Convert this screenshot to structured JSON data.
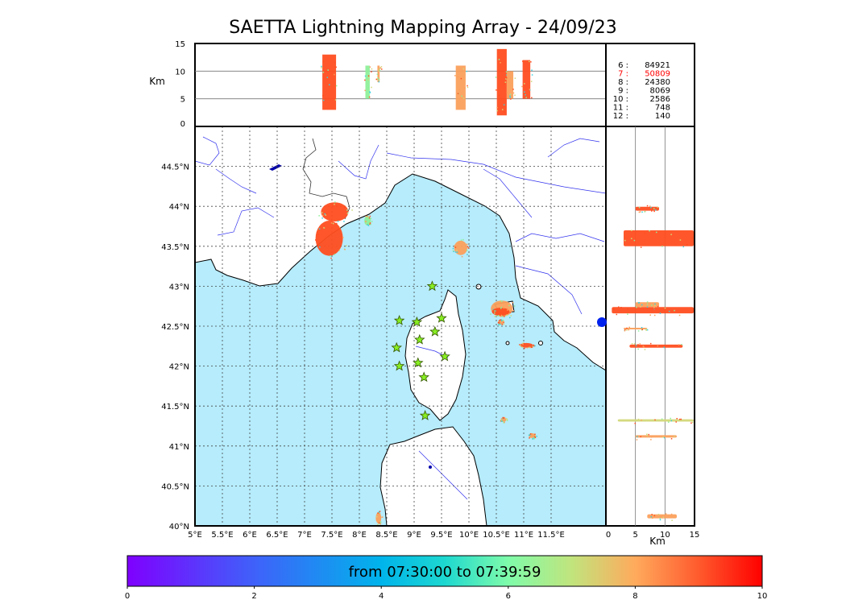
{
  "title": "SAETTA Lightning Mapping Array - 24/09/23",
  "map": {
    "lon_range": [
      5,
      12.5
    ],
    "lat_range": [
      40,
      45
    ],
    "lon_ticks": [
      "5°E",
      "5.5°E",
      "6°E",
      "6.5°E",
      "7°E",
      "7.5°E",
      "8°E",
      "8.5°E",
      "9°E",
      "9.5°E",
      "10°E",
      "10.5°E",
      "11°E",
      "11.5°E"
    ],
    "lat_ticks": [
      "40°N",
      "40.5°N",
      "41°N",
      "41.5°N",
      "42°N",
      "42.5°N",
      "43°N",
      "43.5°N",
      "44°N",
      "44.5°N"
    ],
    "sea_color": "#b6ecfc",
    "stations": [
      [
        9.33,
        43.0
      ],
      [
        8.73,
        42.57
      ],
      [
        9.05,
        42.55
      ],
      [
        9.5,
        42.6
      ],
      [
        9.38,
        42.43
      ],
      [
        9.1,
        42.33
      ],
      [
        8.68,
        42.23
      ],
      [
        9.56,
        42.12
      ],
      [
        9.07,
        42.04
      ],
      [
        8.73,
        42.0
      ],
      [
        9.18,
        41.86
      ],
      [
        9.2,
        41.38
      ]
    ],
    "clusters": [
      {
        "lon": 7.45,
        "lat": 43.6,
        "w": 0.25,
        "h": 0.22,
        "color": "#ff4e20"
      },
      {
        "lon": 7.55,
        "lat": 43.93,
        "w": 0.25,
        "h": 0.12,
        "color": "#ff4e20"
      },
      {
        "lon": 8.15,
        "lat": 43.82,
        "w": 0.06,
        "h": 0.06,
        "color": "#8ef09a"
      },
      {
        "lon": 9.85,
        "lat": 43.48,
        "w": 0.12,
        "h": 0.09,
        "color": "#fba05c"
      },
      {
        "lon": 10.6,
        "lat": 42.72,
        "w": 0.2,
        "h": 0.1,
        "color": "#fba05c"
      },
      {
        "lon": 10.58,
        "lat": 42.68,
        "w": 0.16,
        "h": 0.05,
        "color": "#ff4e20"
      },
      {
        "lon": 11.05,
        "lat": 42.26,
        "w": 0.12,
        "h": 0.03,
        "color": "#ff4e20"
      },
      {
        "lon": 10.63,
        "lat": 41.33,
        "w": 0.05,
        "h": 0.03,
        "color": "#fba05c"
      },
      {
        "lon": 11.15,
        "lat": 41.13,
        "w": 0.06,
        "h": 0.03,
        "color": "#fba05c"
      },
      {
        "lon": 8.35,
        "lat": 40.1,
        "w": 0.05,
        "h": 0.07,
        "color": "#fba05c"
      },
      {
        "lon": 10.58,
        "lat": 42.55,
        "w": 0.05,
        "h": 0.03,
        "color": "#fba05c"
      }
    ]
  },
  "altitude_top": {
    "ylabel": "Km",
    "yticks": [
      "0",
      "5",
      "10",
      "15"
    ],
    "columns": [
      {
        "lon": 7.45,
        "z": [
          3,
          13
        ],
        "w": 0.25,
        "color": "#ff4e20"
      },
      {
        "lon": 8.15,
        "z": [
          5,
          11
        ],
        "w": 0.08,
        "color": "#8ef09a"
      },
      {
        "lon": 8.35,
        "z": [
          8,
          11
        ],
        "w": 0.04,
        "color": "#fba05c"
      },
      {
        "lon": 9.85,
        "z": [
          3,
          11
        ],
        "w": 0.18,
        "color": "#fba05c"
      },
      {
        "lon": 10.6,
        "z": [
          2,
          14
        ],
        "w": 0.18,
        "color": "#ff4e20"
      },
      {
        "lon": 10.75,
        "z": [
          5,
          10
        ],
        "w": 0.12,
        "color": "#fba05c"
      },
      {
        "lon": 11.05,
        "z": [
          5,
          12
        ],
        "w": 0.14,
        "color": "#ff4e20"
      }
    ]
  },
  "altitude_right": {
    "xlabel": "Km",
    "xticks": [
      "0",
      "5",
      "10",
      "15"
    ],
    "bands": [
      {
        "lat": 43.6,
        "z": [
          3,
          15
        ],
        "h": 0.2,
        "color": "#ff4e20"
      },
      {
        "lat": 43.97,
        "z": [
          5,
          9
        ],
        "h": 0.05,
        "color": "#ff4e20"
      },
      {
        "lat": 42.7,
        "z": [
          1,
          15
        ],
        "h": 0.08,
        "color": "#ff4e20"
      },
      {
        "lat": 42.77,
        "z": [
          5,
          9
        ],
        "h": 0.06,
        "color": "#fba05c"
      },
      {
        "lat": 42.47,
        "z": [
          3,
          7
        ],
        "h": 0.02,
        "color": "#fba05c"
      },
      {
        "lat": 42.25,
        "z": [
          4,
          13
        ],
        "h": 0.04,
        "color": "#ff4e20"
      },
      {
        "lat": 41.32,
        "z": [
          2,
          15
        ],
        "h": 0.03,
        "color": "#d2d878"
      },
      {
        "lat": 41.12,
        "z": [
          5,
          12
        ],
        "h": 0.03,
        "color": "#fba05c"
      },
      {
        "lat": 40.12,
        "z": [
          7,
          12
        ],
        "h": 0.05,
        "color": "#fba05c"
      }
    ]
  },
  "counts": [
    {
      "label": "6  :",
      "value": "84921",
      "color": "#000000"
    },
    {
      "label": "7  :",
      "value": "50809",
      "color": "#ff0000"
    },
    {
      "label": "8  :",
      "value": "24380",
      "color": "#000000"
    },
    {
      "label": "9  :",
      "value": "8069",
      "color": "#000000"
    },
    {
      "label": "10 :",
      "value": "2586",
      "color": "#000000"
    },
    {
      "label": "11 :",
      "value": "748",
      "color": "#000000"
    },
    {
      "label": "12 :",
      "value": "140",
      "color": "#000000"
    }
  ],
  "colorbar": {
    "text": "from 07:30:00 to 07:39:59",
    "ticks": [
      "0",
      "2",
      "4",
      "6",
      "8",
      "10"
    ]
  }
}
